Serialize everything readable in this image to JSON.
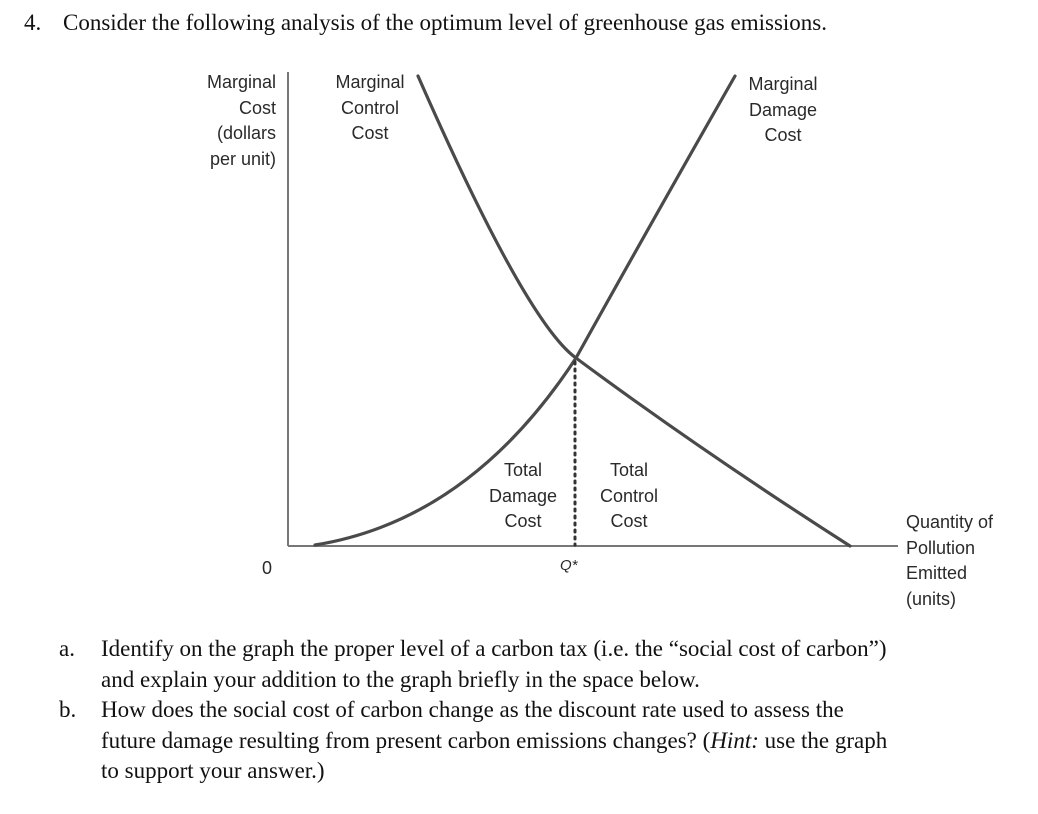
{
  "question": {
    "number": "4.",
    "text": "Consider the following analysis of the optimum level of greenhouse gas emissions."
  },
  "graph": {
    "y_axis_label": [
      "Marginal",
      "Cost",
      "(dollars",
      "per unit)"
    ],
    "x_axis_label": [
      "Quantity of",
      "Pollution",
      "Emitted",
      "(units)"
    ],
    "origin_label": "0",
    "q_star_label": "Q*",
    "curve_control_label": [
      "Marginal",
      "Control",
      "Cost"
    ],
    "curve_damage_label": [
      "Marginal",
      "Damage",
      "Cost"
    ],
    "area_damage_label": [
      "Total",
      "Damage",
      "Cost"
    ],
    "area_control_label": [
      "Total",
      "Control",
      "Cost"
    ],
    "line_color": "#4a4a4a",
    "axis_color": "#777777"
  },
  "parts": [
    {
      "letter": "a.",
      "lines": [
        "Identify on the graph the proper level of a carbon tax (i.e. the “social cost of carbon”)",
        "and explain your addition to the graph briefly in the space below."
      ]
    },
    {
      "letter": "b.",
      "lines": [
        "How does the social cost of carbon change as the discount rate used to assess the",
        "future damage resulting from present carbon emissions changes? (",
        "to support your answer.)"
      ],
      "hint_word": "Hint:",
      "hint_rest": " use the graph"
    }
  ]
}
